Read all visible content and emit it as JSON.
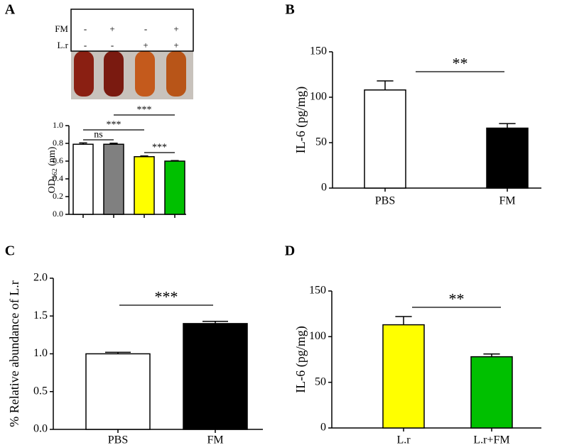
{
  "chart_data": [
    {
      "type": "bar",
      "panel": "A",
      "treatments": [
        {
          "name": "FM",
          "signs": [
            "-",
            "+",
            "-",
            "+"
          ]
        },
        {
          "name": "L.r",
          "signs": [
            "-",
            "-",
            "+",
            "+"
          ]
        }
      ],
      "y_label": "OD",
      "y_label_sub": "562",
      "y_label_suffix": " (nm)",
      "categories": [
        null,
        null,
        null,
        null
      ],
      "values": [
        0.79,
        0.79,
        0.65,
        0.6
      ],
      "errors": [
        0.015,
        0.012,
        0.008,
        0.006
      ],
      "colors": [
        "#ffffff",
        "#808080",
        "#ffff00",
        "#00c000"
      ],
      "ylim": [
        0,
        1.0
      ],
      "yticks": [
        {
          "value": 0,
          "label": "0.0"
        },
        0.2,
        0.4,
        0.6,
        0.8,
        {
          "value": 1.0,
          "label": "1.0"
        }
      ],
      "annotations": [
        "ns",
        "***",
        "***",
        "***"
      ]
    },
    {
      "type": "bar",
      "panel": "B",
      "y_label": "IL-6 (pg/mg)",
      "categories": [
        "PBS",
        "FM"
      ],
      "values": [
        108,
        66
      ],
      "errors": [
        10,
        5
      ],
      "colors": [
        "#ffffff",
        "#000000"
      ],
      "ylim": [
        0,
        150
      ],
      "yticks": [
        0,
        50,
        100,
        150
      ],
      "annotations": [
        "**"
      ]
    },
    {
      "type": "bar",
      "panel": "C",
      "y_label": "% Relative abundance of L.r",
      "categories": [
        "PBS",
        "FM"
      ],
      "values": [
        1.0,
        1.4
      ],
      "errors": [
        0.02,
        0.03
      ],
      "colors": [
        "#ffffff",
        "#000000"
      ],
      "ylim": [
        0,
        2.0
      ],
      "yticks": [
        {
          "value": 0,
          "label": "0.0"
        },
        0.5,
        {
          "value": 1.0,
          "label": "1.0"
        },
        1.5,
        {
          "value": 2.0,
          "label": "2.0"
        }
      ],
      "annotations": [
        "***"
      ]
    },
    {
      "type": "bar",
      "panel": "D",
      "y_label": "IL-6 (pg/mg)",
      "categories": [
        "L.r",
        "L.r+FM"
      ],
      "values": [
        113,
        78
      ],
      "errors": [
        9,
        3
      ],
      "colors": [
        "#ffff00",
        "#00c000"
      ],
      "ylim": [
        0,
        150
      ],
      "yticks": [
        0,
        50,
        100,
        150
      ],
      "annotations": [
        "**"
      ]
    }
  ]
}
